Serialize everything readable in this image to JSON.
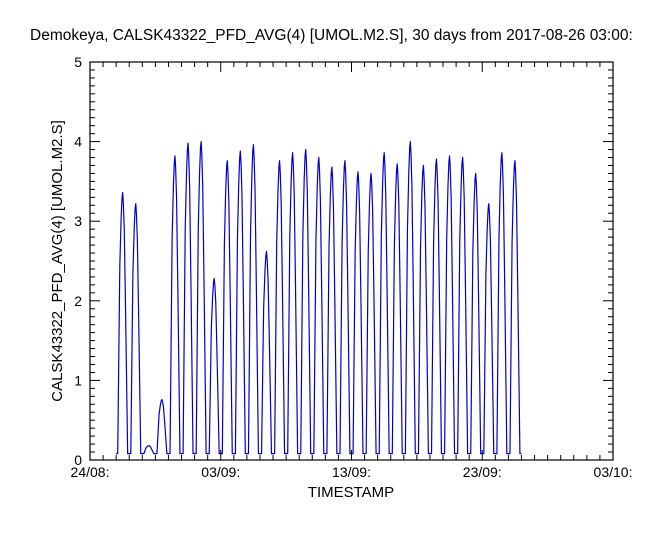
{
  "chart_data": {
    "type": "line",
    "title": "Demokeya, CALSK43322_PFD_AVG(4) [UMOL.M2.S], 30 days from  2017-08-26 03:00:",
    "xlabel": "TIMESTAMP",
    "ylabel": "CALSK43322_PFD_AVG(4) [UMOL.M2.S]",
    "x_axis_type": "date",
    "xlim": [
      "2017-08-24",
      "2017-10-03"
    ],
    "ylim": [
      0,
      5
    ],
    "x_tick_labels": [
      {
        "date": "2017-08-24",
        "label": "24/08:"
      },
      {
        "date": "2017-09-03",
        "label": "03/09:"
      },
      {
        "date": "2017-09-13",
        "label": "13/09:"
      },
      {
        "date": "2017-09-23",
        "label": "23/09:"
      },
      {
        "date": "2017-10-03",
        "label": "03/10:"
      }
    ],
    "y_ticks": [
      0,
      1,
      2,
      3,
      4,
      5
    ],
    "grid": false,
    "line_color": "#0000cc",
    "baseline_value": 0.08,
    "series": [
      {
        "values": [
          {
            "day": "2017-08-26",
            "peak": 3.36
          },
          {
            "day": "2017-08-27",
            "peak": 3.22
          },
          {
            "day": "2017-08-28",
            "peak": 0.18
          },
          {
            "day": "2017-08-29",
            "peak": 0.76
          },
          {
            "day": "2017-08-30",
            "peak": 3.82
          },
          {
            "day": "2017-08-31",
            "peak": 3.98
          },
          {
            "day": "2017-09-01",
            "peak": 4.0
          },
          {
            "day": "2017-09-02",
            "peak": 2.28
          },
          {
            "day": "2017-09-03",
            "peak": 3.76
          },
          {
            "day": "2017-09-04",
            "peak": 3.88
          },
          {
            "day": "2017-09-05",
            "peak": 3.96
          },
          {
            "day": "2017-09-06",
            "peak": 2.62
          },
          {
            "day": "2017-09-07",
            "peak": 3.76
          },
          {
            "day": "2017-09-08",
            "peak": 3.86
          },
          {
            "day": "2017-09-09",
            "peak": 3.9
          },
          {
            "day": "2017-09-10",
            "peak": 3.8
          },
          {
            "day": "2017-09-11",
            "peak": 3.68
          },
          {
            "day": "2017-09-12",
            "peak": 3.76
          },
          {
            "day": "2017-09-13",
            "peak": 3.62
          },
          {
            "day": "2017-09-14",
            "peak": 3.6
          },
          {
            "day": "2017-09-15",
            "peak": 3.86
          },
          {
            "day": "2017-09-16",
            "peak": 3.72
          },
          {
            "day": "2017-09-17",
            "peak": 4.0
          },
          {
            "day": "2017-09-18",
            "peak": 3.7
          },
          {
            "day": "2017-09-19",
            "peak": 3.78
          },
          {
            "day": "2017-09-20",
            "peak": 3.82
          },
          {
            "day": "2017-09-21",
            "peak": 3.8
          },
          {
            "day": "2017-09-22",
            "peak": 3.6
          },
          {
            "day": "2017-09-23",
            "peak": 3.22
          },
          {
            "day": "2017-09-24",
            "peak": 3.86
          },
          {
            "day": "2017-09-25",
            "peak": 3.76
          }
        ]
      }
    ]
  }
}
